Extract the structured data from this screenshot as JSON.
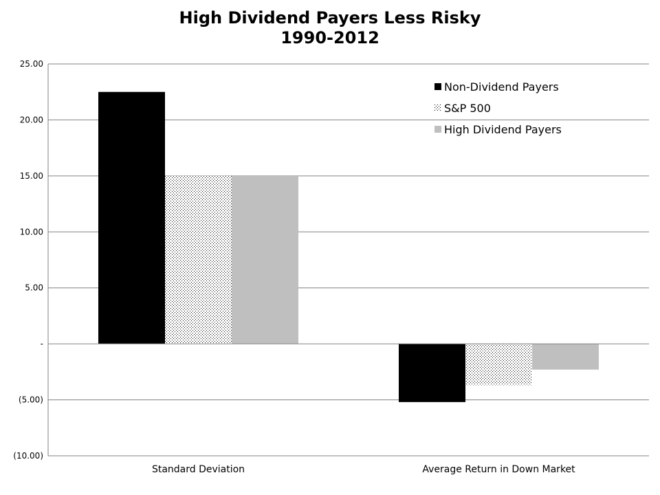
{
  "chart_data": {
    "type": "bar",
    "title": "High Dividend Payers Less Risky",
    "subtitle": "1990-2012",
    "categories": [
      "Standard Deviation",
      "Average Return in Down Market"
    ],
    "series": [
      {
        "name": "Non-Dividend Payers",
        "values": [
          22.5,
          -5.2
        ],
        "color": "#000000",
        "pattern": "solid"
      },
      {
        "name": "S&P 500",
        "values": [
          15.0,
          -3.7
        ],
        "color": "#000000",
        "pattern": "dots"
      },
      {
        "name": "High Dividend Payers",
        "values": [
          15.0,
          -2.3
        ],
        "color": "#bfbfbf",
        "pattern": "solid"
      }
    ],
    "ylim": [
      -10,
      25
    ],
    "yticks": [
      {
        "value": 25,
        "label": "25.00"
      },
      {
        "value": 20,
        "label": "20.00"
      },
      {
        "value": 15,
        "label": "15.00"
      },
      {
        "value": 10,
        "label": "10.00"
      },
      {
        "value": 5,
        "label": "5.00"
      },
      {
        "value": 0,
        "label": "-"
      },
      {
        "value": -5,
        "label": "(5.00)"
      },
      {
        "value": -10,
        "label": "(10.00)"
      }
    ],
    "xlabel": "",
    "ylabel": "",
    "grid": true,
    "legend_position": "top-right",
    "colors": {
      "gridline": "#808080",
      "axis": "#808080"
    }
  }
}
